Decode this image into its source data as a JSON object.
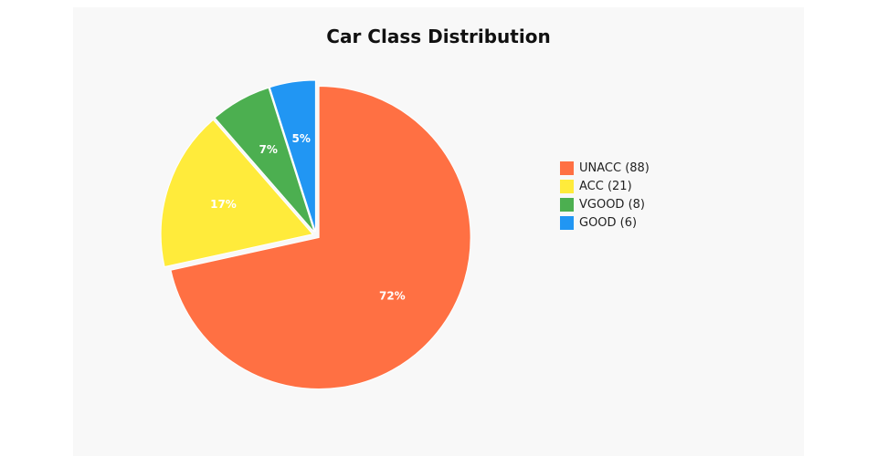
{
  "chart_data": {
    "type": "pie",
    "title": "Car Class Distribution",
    "slices": [
      {
        "label": "UNACC",
        "legend": "UNACC (88)",
        "value": 88,
        "percent_label": "72%",
        "color": "#FF7043"
      },
      {
        "label": "ACC",
        "legend": "ACC (21)",
        "value": 21,
        "percent_label": "17%",
        "color": "#FFEB3B"
      },
      {
        "label": "VGOOD",
        "legend": "VGOOD (8)",
        "value": 8,
        "percent_label": "7%",
        "color": "#4CAF50"
      },
      {
        "label": "GOOD",
        "legend": "GOOD (6)",
        "value": 6,
        "percent_label": "5%",
        "color": "#2196F3"
      }
    ],
    "legend_position": "right"
  }
}
